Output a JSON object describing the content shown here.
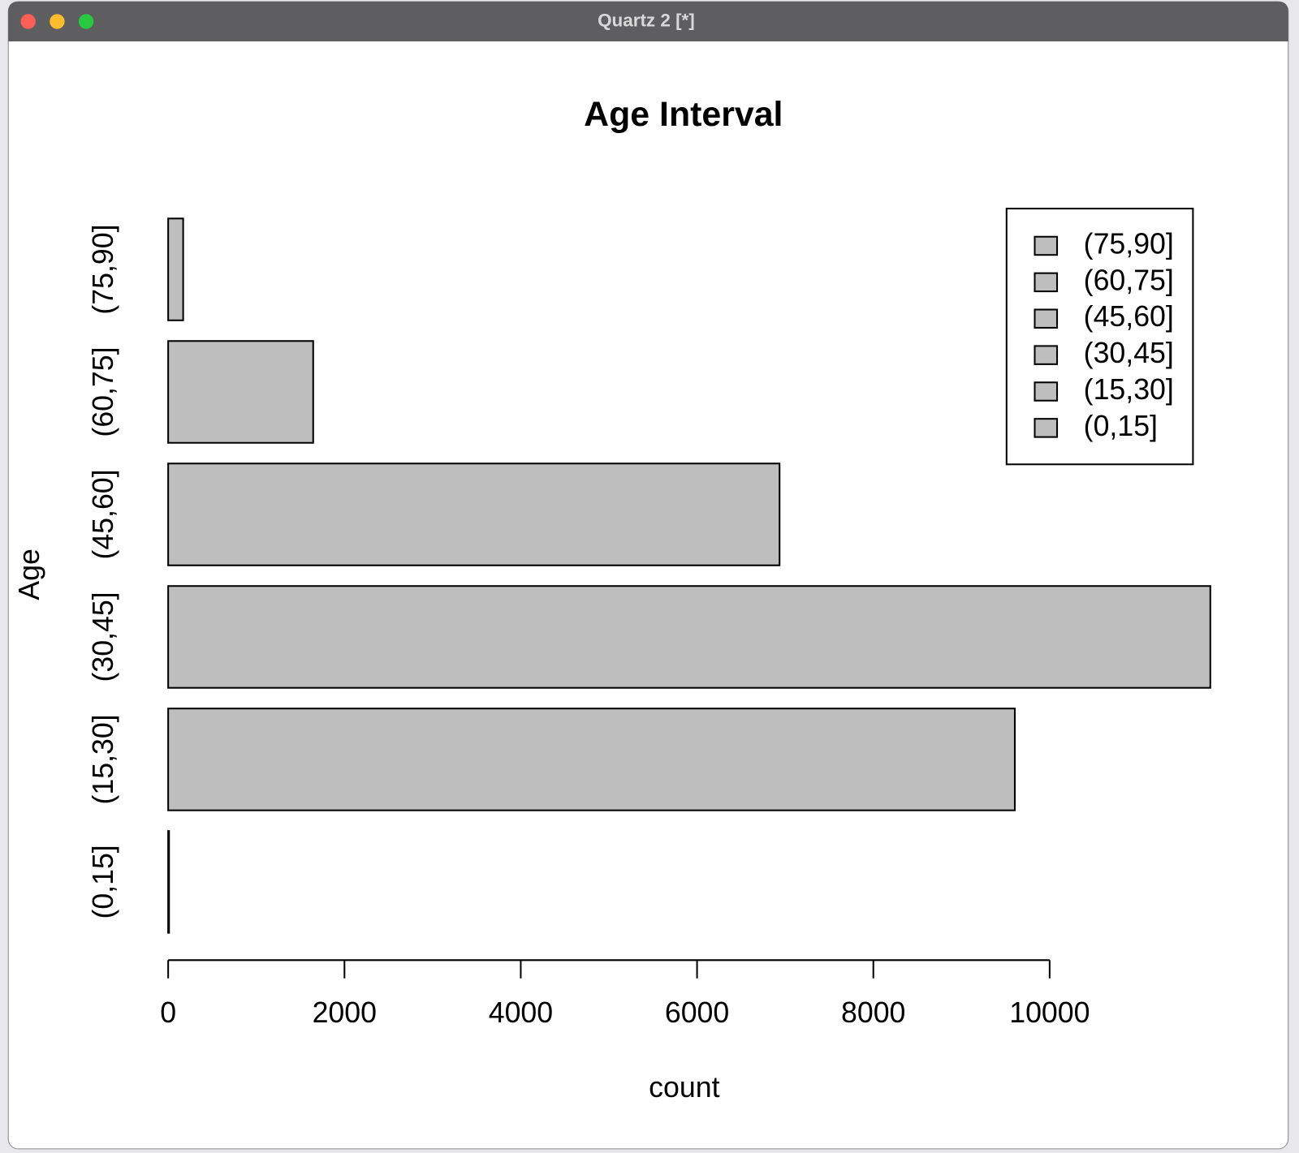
{
  "window": {
    "title": "Quartz 2 [*]"
  },
  "chart_data": {
    "type": "bar",
    "orientation": "horizontal",
    "title": "Age Interval",
    "x_label": "count",
    "y_label": "Age",
    "categories": [
      "(0,15]",
      "(15,30]",
      "(30,45]",
      "(45,60]",
      "(60,75]",
      "(75,90]"
    ],
    "values": [
      10,
      9605,
      11823,
      6936,
      1645,
      170
    ],
    "color": "#bebebe",
    "xlim": [
      0,
      12000
    ],
    "xticks": [
      0,
      2000,
      4000,
      6000,
      8000,
      10000
    ],
    "legend": "top-right"
  }
}
